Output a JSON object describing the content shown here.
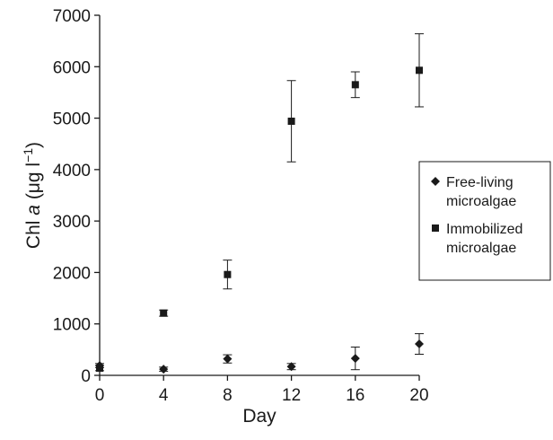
{
  "chart_data": {
    "type": "scatter",
    "title": "",
    "xlabel": "Day",
    "ylabel": {
      "prefix": "Chl ",
      "italic": "a",
      "middle": " (μg l",
      "superscript": "−1",
      "suffix": ")"
    },
    "xlim": [
      0,
      20
    ],
    "ylim": [
      0,
      7000
    ],
    "xticks": [
      0,
      4,
      8,
      12,
      16,
      20
    ],
    "yticks": [
      0,
      1000,
      2000,
      3000,
      4000,
      5000,
      6000,
      7000
    ],
    "grid": false,
    "legend_position": "right",
    "series": [
      {
        "name": "Free-living microalgae",
        "legend_lines": [
          "Free-living",
          "microalgae"
        ],
        "marker": "diamond",
        "color": "#1a1a1a",
        "x": [
          0,
          4,
          8,
          12,
          16,
          20
        ],
        "y": [
          190,
          120,
          320,
          170,
          330,
          610
        ],
        "err": [
          40,
          40,
          80,
          60,
          220,
          200
        ]
      },
      {
        "name": "Immobilized microalgae",
        "legend_lines": [
          "Immobilized",
          "microalgae"
        ],
        "marker": "square",
        "color": "#1a1a1a",
        "x": [
          0,
          4,
          8,
          12,
          16,
          20
        ],
        "y": [
          140,
          1210,
          1960,
          4940,
          5650,
          5930
        ],
        "err": [
          50,
          60,
          280,
          790,
          250,
          710
        ]
      }
    ]
  }
}
